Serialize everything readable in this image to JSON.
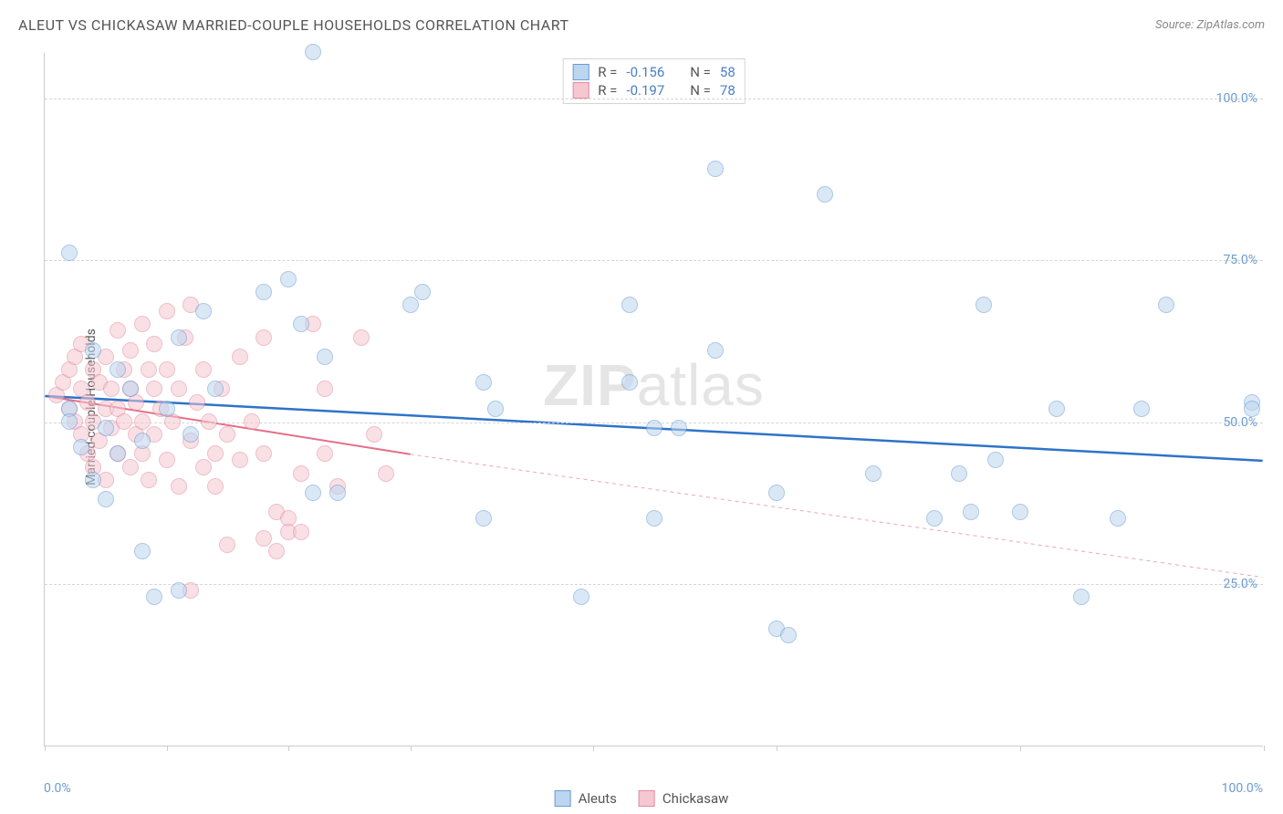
{
  "title": "ALEUT VS CHICKASAW MARRIED-COUPLE HOUSEHOLDS CORRELATION CHART",
  "source_label": "Source: ",
  "source_name": "ZipAtlas.com",
  "ylabel": "Married-couple Households",
  "watermark_a": "ZIP",
  "watermark_b": "atlas",
  "chart": {
    "type": "scatter",
    "xlim": [
      0,
      100
    ],
    "ylim": [
      0,
      107
    ],
    "ytick_values": [
      25,
      50,
      75,
      100
    ],
    "ytick_labels": [
      "25.0%",
      "50.0%",
      "75.0%",
      "100.0%"
    ],
    "xtick_positions": [
      0,
      10,
      20,
      30,
      45,
      60,
      80,
      100
    ],
    "xaxis_min_label": "0.0%",
    "xaxis_max_label": "100.0%",
    "background_color": "#ffffff",
    "grid_color": "#d5d5d5",
    "marker_radius": 9,
    "marker_opacity": 0.55,
    "series": [
      {
        "name": "Aleuts",
        "fill_color": "#bcd6f0",
        "stroke_color": "#6b9bd1",
        "R": "-0.156",
        "N": "58",
        "trend": {
          "x1": 0,
          "y1": 54,
          "x2": 100,
          "y2": 44,
          "color": "#2f73c9",
          "width": 2.5,
          "dash": "none"
        },
        "points": [
          [
            2,
            76
          ],
          [
            22,
            107
          ],
          [
            4,
            61
          ],
          [
            5,
            49
          ],
          [
            7,
            55
          ],
          [
            6,
            58
          ],
          [
            8,
            47
          ],
          [
            10,
            52
          ],
          [
            11,
            63
          ],
          [
            12,
            48
          ],
          [
            13,
            67
          ],
          [
            14,
            55
          ],
          [
            3,
            46
          ],
          [
            4,
            41
          ],
          [
            2,
            52
          ],
          [
            6,
            45
          ],
          [
            5,
            38
          ],
          [
            8,
            30
          ],
          [
            11,
            24
          ],
          [
            9,
            23
          ],
          [
            18,
            70
          ],
          [
            20,
            72
          ],
          [
            21,
            65
          ],
          [
            22,
            39
          ],
          [
            23,
            60
          ],
          [
            24,
            39
          ],
          [
            30,
            68
          ],
          [
            31,
            70
          ],
          [
            36,
            56
          ],
          [
            37,
            52
          ],
          [
            36,
            35
          ],
          [
            44,
            23
          ],
          [
            48,
            68
          ],
          [
            48,
            56
          ],
          [
            55,
            89
          ],
          [
            55,
            61
          ],
          [
            50,
            49
          ],
          [
            52,
            49
          ],
          [
            50,
            35
          ],
          [
            60,
            39
          ],
          [
            60,
            18
          ],
          [
            61,
            17
          ],
          [
            64,
            85
          ],
          [
            68,
            42
          ],
          [
            73,
            35
          ],
          [
            75,
            42
          ],
          [
            76,
            36
          ],
          [
            77,
            68
          ],
          [
            78,
            44
          ],
          [
            80,
            36
          ],
          [
            83,
            52
          ],
          [
            85,
            23
          ],
          [
            88,
            35
          ],
          [
            90,
            52
          ],
          [
            92,
            68
          ],
          [
            99,
            53
          ],
          [
            99,
            52
          ],
          [
            2,
            50
          ]
        ]
      },
      {
        "name": "Chickasaw",
        "fill_color": "#f5c7d1",
        "stroke_color": "#e08ba0",
        "R": "-0.197",
        "N": "78",
        "trend_solid": {
          "x1": 0,
          "y1": 54,
          "x2": 30,
          "y2": 45,
          "color": "#e36f8a",
          "width": 2,
          "dash": "none"
        },
        "trend_dashed": {
          "x1": 30,
          "y1": 45,
          "x2": 100,
          "y2": 26,
          "color": "#e8a7b5",
          "width": 1,
          "dash": "4,4"
        },
        "points": [
          [
            1,
            54
          ],
          [
            1.5,
            56
          ],
          [
            2,
            52
          ],
          [
            2,
            58
          ],
          [
            2.5,
            50
          ],
          [
            2.5,
            60
          ],
          [
            3,
            48
          ],
          [
            3,
            55
          ],
          [
            3,
            62
          ],
          [
            3.5,
            45
          ],
          [
            3.5,
            53
          ],
          [
            4,
            50
          ],
          [
            4,
            58
          ],
          [
            4,
            43
          ],
          [
            4.5,
            56
          ],
          [
            4.5,
            47
          ],
          [
            5,
            52
          ],
          [
            5,
            60
          ],
          [
            5,
            41
          ],
          [
            5.5,
            55
          ],
          [
            5.5,
            49
          ],
          [
            6,
            45
          ],
          [
            6,
            52
          ],
          [
            6,
            64
          ],
          [
            6.5,
            50
          ],
          [
            6.5,
            58
          ],
          [
            7,
            43
          ],
          [
            7,
            55
          ],
          [
            7,
            61
          ],
          [
            7.5,
            48
          ],
          [
            7.5,
            53
          ],
          [
            8,
            65
          ],
          [
            8,
            45
          ],
          [
            8,
            50
          ],
          [
            8.5,
            58
          ],
          [
            8.5,
            41
          ],
          [
            9,
            55
          ],
          [
            9,
            48
          ],
          [
            9,
            62
          ],
          [
            9.5,
            52
          ],
          [
            10,
            44
          ],
          [
            10,
            58
          ],
          [
            10,
            67
          ],
          [
            10.5,
            50
          ],
          [
            11,
            55
          ],
          [
            11,
            40
          ],
          [
            11.5,
            63
          ],
          [
            12,
            47
          ],
          [
            12,
            68
          ],
          [
            12.5,
            53
          ],
          [
            13,
            43
          ],
          [
            13,
            58
          ],
          [
            13.5,
            50
          ],
          [
            14,
            45
          ],
          [
            14,
            40
          ],
          [
            14.5,
            55
          ],
          [
            15,
            31
          ],
          [
            15,
            48
          ],
          [
            16,
            44
          ],
          [
            16,
            60
          ],
          [
            17,
            50
          ],
          [
            18,
            45
          ],
          [
            18,
            63
          ],
          [
            19,
            36
          ],
          [
            19,
            30
          ],
          [
            20,
            35
          ],
          [
            20,
            33
          ],
          [
            21,
            42
          ],
          [
            22,
            65
          ],
          [
            23,
            55
          ],
          [
            23,
            45
          ],
          [
            24,
            40
          ],
          [
            26,
            63
          ],
          [
            27,
            48
          ],
          [
            28,
            42
          ],
          [
            12,
            24
          ],
          [
            18,
            32
          ],
          [
            21,
            33
          ]
        ]
      }
    ]
  },
  "stats_labels": {
    "R": "R =",
    "N": "N ="
  },
  "legend": {
    "items": [
      {
        "label": "Aleuts",
        "fill": "#bcd6f0",
        "stroke": "#6b9bd1"
      },
      {
        "label": "Chickasaw",
        "fill": "#f5c7d1",
        "stroke": "#e08ba0"
      }
    ]
  }
}
